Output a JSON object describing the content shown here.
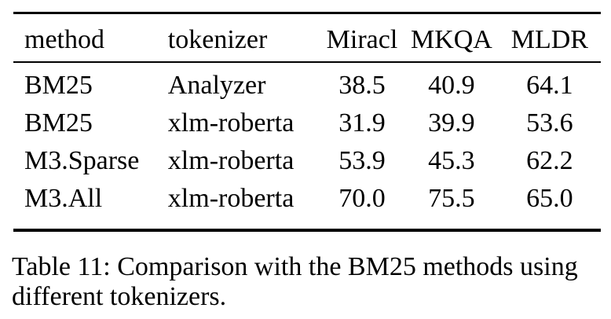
{
  "chart_data": {
    "type": "table",
    "title": "Table 11: Comparison with the BM25 methods using different tokenizers.",
    "columns": [
      "method",
      "tokenizer",
      "Miracl",
      "MKQA",
      "MLDR"
    ],
    "rows": [
      [
        "BM25",
        "Analyzer",
        "38.5",
        "40.9",
        "64.1"
      ],
      [
        "BM25",
        "xlm-roberta",
        "31.9",
        "39.9",
        "53.6"
      ],
      [
        "M3.Sparse",
        "xlm-roberta",
        "53.9",
        "45.3",
        "62.2"
      ],
      [
        "M3.All",
        "xlm-roberta",
        "70.0",
        "75.5",
        "65.0"
      ]
    ]
  },
  "caption": {
    "line1": "Table 11: Comparison with the BM25 methods using",
    "line2": "different tokenizers."
  },
  "colors": {
    "text": "#000000",
    "background": "#ffffff",
    "rule": "#000000"
  }
}
